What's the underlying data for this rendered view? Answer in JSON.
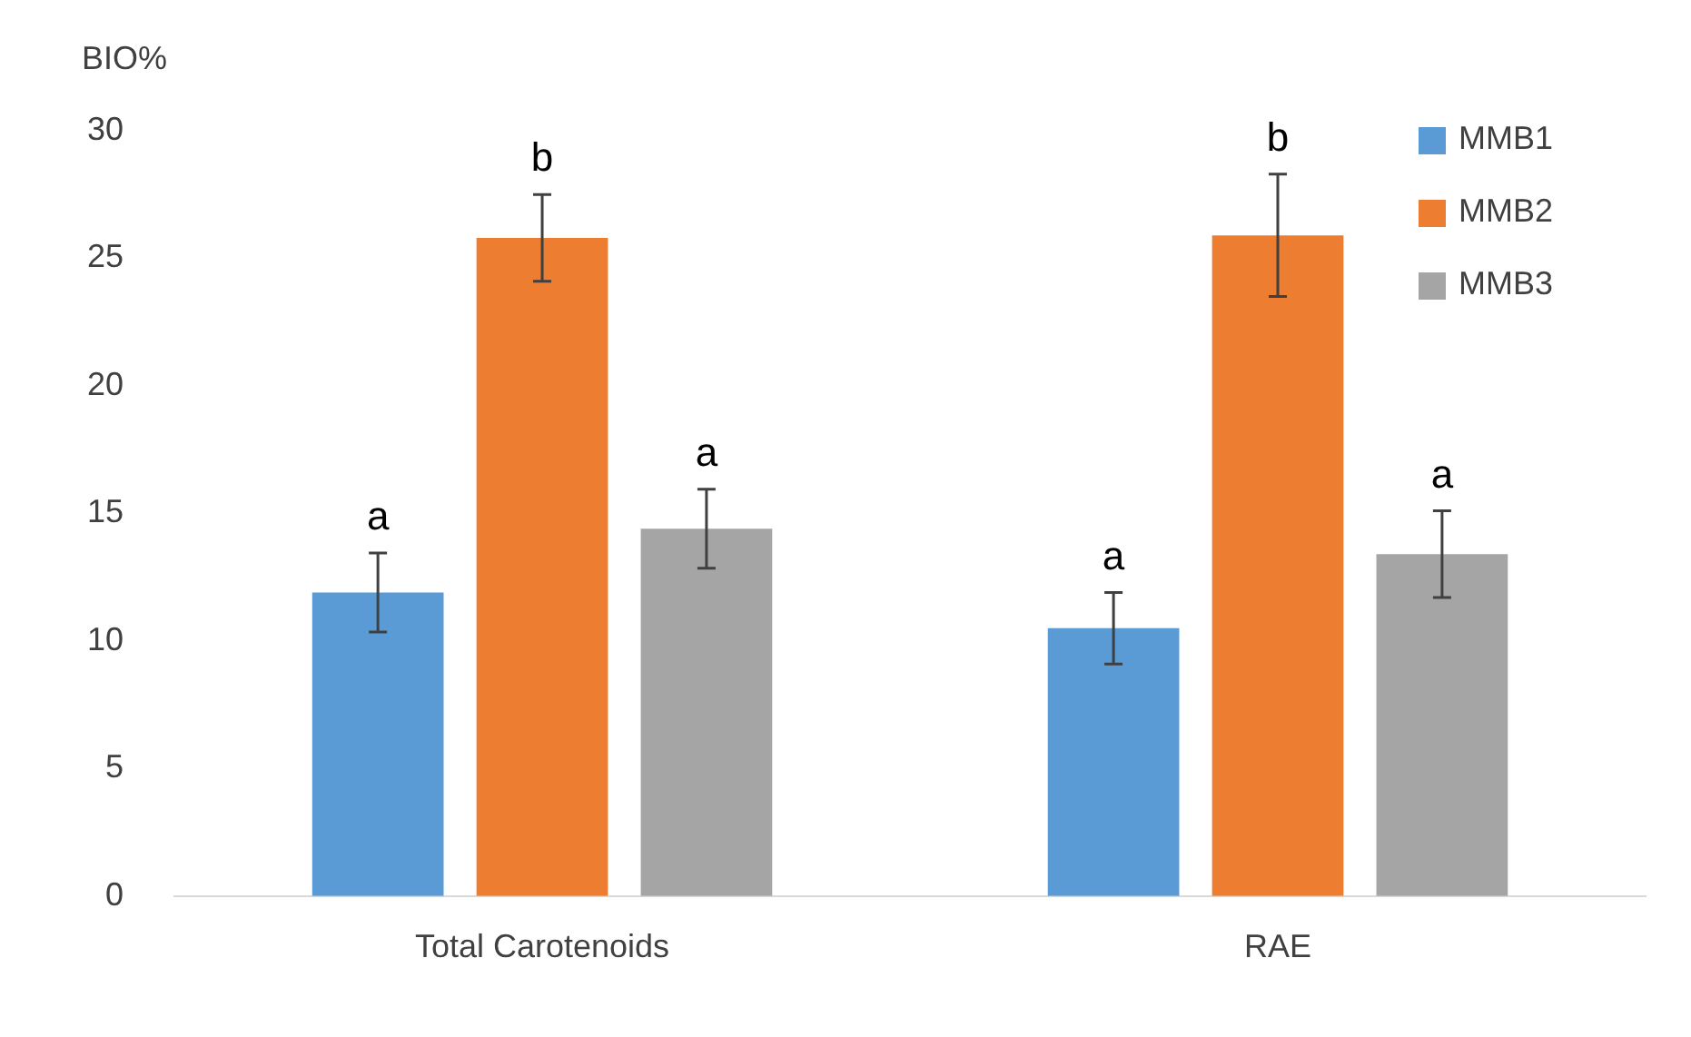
{
  "chart_data": {
    "type": "bar",
    "ylabel": "BIO%",
    "categories": [
      "Total Carotenoids",
      "RAE"
    ],
    "series": [
      {
        "name": "MMB1",
        "color": "#5b9bd5",
        "values": [
          11.9,
          10.5
        ],
        "errors": [
          1.55,
          1.4
        ]
      },
      {
        "name": "MMB2",
        "color": "#ed7d31",
        "values": [
          25.8,
          25.9
        ],
        "errors": [
          1.7,
          2.4
        ]
      },
      {
        "name": "MMB3",
        "color": "#a5a5a5",
        "values": [
          14.4,
          13.4
        ],
        "errors": [
          1.55,
          1.7
        ]
      }
    ],
    "ylim": [
      0,
      30
    ],
    "yticks": [
      0,
      5,
      10,
      15,
      20,
      25,
      30
    ],
    "grid": false,
    "legend": "top right",
    "annotations": [
      "a",
      "b",
      "a",
      "a",
      "b",
      "a"
    ]
  }
}
